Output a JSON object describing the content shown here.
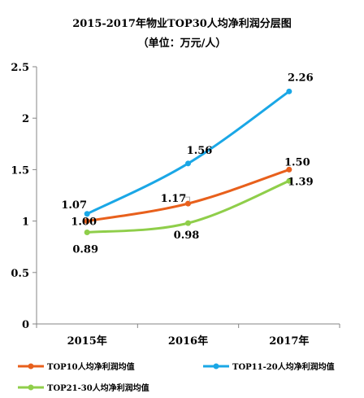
{
  "chart_data": {
    "type": "line",
    "title": "2015-2017年物业TOP30人均净利润分层图",
    "subtitle": "（单位：万元/人）",
    "categories": [
      "2015年",
      "2016年",
      "2017年"
    ],
    "ylim": [
      0,
      2.5
    ],
    "yticks": [
      "0",
      "0.5",
      "1",
      "1.5",
      "2",
      "2.5"
    ],
    "ytick_values": [
      0,
      0.5,
      1,
      1.5,
      2,
      2.5
    ],
    "grid": false,
    "legend_position": "bottom",
    "series": [
      {
        "name": "TOP10人均净利润均值",
        "color": "#e8601c",
        "values": [
          1.0,
          1.17,
          1.5
        ],
        "labels": [
          "1.00",
          "1.17",
          "1.50"
        ]
      },
      {
        "name": "TOP11-20人均净利润均值",
        "color": "#1aa7e6",
        "values": [
          1.07,
          1.56,
          2.26
        ],
        "labels": [
          "1.07",
          "1.56",
          "2.26"
        ]
      },
      {
        "name": "TOP21-30人均净利润均值",
        "color": "#8fce4a",
        "values": [
          0.89,
          0.98,
          1.39
        ],
        "labels": [
          "0.89",
          "0.98",
          "1.39"
        ]
      }
    ]
  }
}
